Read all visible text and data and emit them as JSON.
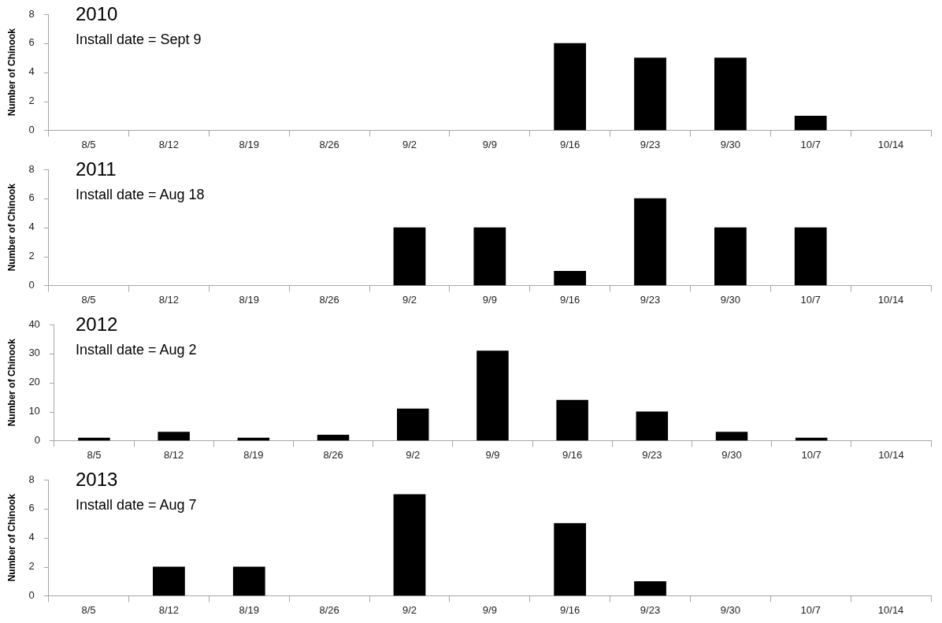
{
  "chart_data": [
    {
      "type": "bar",
      "title": "2010",
      "subtitle": "Install date = Sept 9",
      "ylabel": "Number of Chinook",
      "categories": [
        "8/5",
        "8/12",
        "8/19",
        "8/26",
        "9/2",
        "9/9",
        "9/16",
        "9/23",
        "9/30",
        "10/7",
        "10/14"
      ],
      "values": [
        0,
        0,
        0,
        0,
        0,
        0,
        6,
        5,
        5,
        1,
        0
      ],
      "color": "#000000",
      "ylim": [
        0,
        8
      ],
      "yticks": [
        0,
        2,
        4,
        6,
        8
      ],
      "legend": false
    },
    {
      "type": "bar",
      "title": "2011",
      "subtitle": "Install date = Aug 18",
      "ylabel": "Number of Chinook",
      "categories": [
        "8/5",
        "8/12",
        "8/19",
        "8/26",
        "9/2",
        "9/9",
        "9/16",
        "9/23",
        "9/30",
        "10/7",
        "10/14"
      ],
      "values": [
        0,
        0,
        0,
        0,
        4,
        4,
        1,
        6,
        4,
        4,
        0
      ],
      "color": "#000000",
      "ylim": [
        0,
        8
      ],
      "yticks": [
        0,
        2,
        4,
        6,
        8
      ],
      "legend": false
    },
    {
      "type": "bar",
      "title": "2012",
      "subtitle": "Install date = Aug 2",
      "ylabel": "Number of Chinook",
      "categories": [
        "8/5",
        "8/12",
        "8/19",
        "8/26",
        "9/2",
        "9/9",
        "9/16",
        "9/23",
        "9/30",
        "10/7",
        "10/14"
      ],
      "values": [
        1,
        3,
        1,
        2,
        11,
        31,
        14,
        10,
        3,
        1,
        0
      ],
      "color": "#000000",
      "ylim": [
        0,
        40
      ],
      "yticks": [
        0,
        10,
        20,
        30,
        40
      ],
      "legend": false
    },
    {
      "type": "bar",
      "title": "2013",
      "subtitle": "Install date = Aug 7",
      "ylabel": "Number of Chinook",
      "categories": [
        "8/5",
        "8/12",
        "8/19",
        "8/26",
        "9/2",
        "9/9",
        "9/16",
        "9/23",
        "9/30",
        "10/7",
        "10/14"
      ],
      "values": [
        0,
        2,
        2,
        0,
        7,
        0,
        5,
        1,
        0,
        0,
        0
      ],
      "color": "#000000",
      "ylim": [
        0,
        8
      ],
      "yticks": [
        0,
        2,
        4,
        6,
        8
      ],
      "legend": false
    }
  ]
}
